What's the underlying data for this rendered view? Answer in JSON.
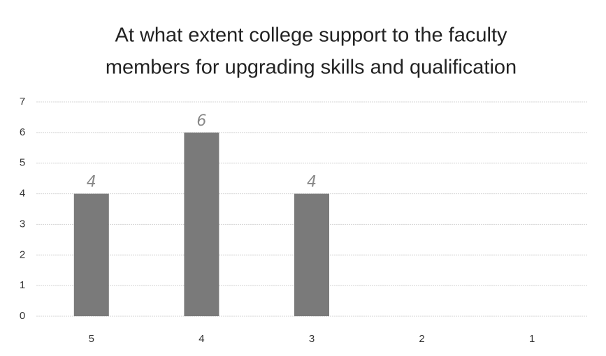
{
  "chart_data": {
    "type": "bar",
    "title": [
      "At what extent college support to the faculty",
      "members for upgrading skills and qualification"
    ],
    "categories": [
      "5",
      "4",
      "3",
      "2",
      "1"
    ],
    "values": [
      4,
      6,
      4,
      0,
      0
    ],
    "color": "#7a7a7a",
    "ylim": [
      0,
      7
    ],
    "yticks": [
      0,
      1,
      2,
      3,
      4,
      5,
      6,
      7
    ],
    "grid": true
  }
}
